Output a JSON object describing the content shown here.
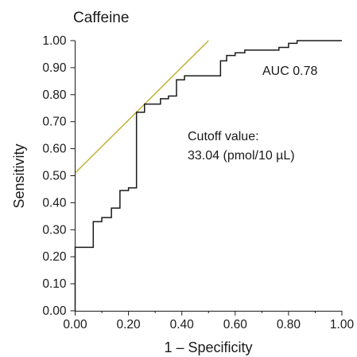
{
  "chart_data": {
    "type": "line",
    "title": "Caffeine",
    "xlabel": "1 – Specificity",
    "ylabel": "Sensitivity",
    "xlim": [
      0.0,
      1.0
    ],
    "ylim": [
      0.0,
      1.0
    ],
    "x_ticks": [
      "0.00",
      "0.20",
      "0.40",
      "0.60",
      "0.80",
      "1.00"
    ],
    "x_tick_values": [
      0.0,
      0.2,
      0.4,
      0.6,
      0.8,
      1.0
    ],
    "y_ticks": [
      "0.00",
      "0.10",
      "0.20",
      "0.30",
      "0.40",
      "0.50",
      "0.60",
      "0.70",
      "0.80",
      "0.90",
      "1.00"
    ],
    "y_tick_values": [
      0.0,
      0.1,
      0.2,
      0.3,
      0.4,
      0.5,
      0.6,
      0.7,
      0.8,
      0.9,
      1.0
    ],
    "grid": false,
    "series": [
      {
        "x": [
          0.0,
          0.0,
          0.068,
          0.068,
          0.1,
          0.1,
          0.136,
          0.136,
          0.168,
          0.168,
          0.2,
          0.2,
          0.23,
          0.23,
          0.26,
          0.26,
          0.32,
          0.32,
          0.35,
          0.35,
          0.38,
          0.38,
          0.41,
          0.41,
          0.545,
          0.545,
          0.568,
          0.568,
          0.6,
          0.6,
          0.636,
          0.636,
          0.764,
          0.764,
          0.8,
          0.8,
          0.832,
          0.832,
          0.864,
          1.0
        ],
        "y": [
          0.0,
          0.235,
          0.235,
          0.33,
          0.33,
          0.345,
          0.345,
          0.38,
          0.38,
          0.445,
          0.445,
          0.455,
          0.455,
          0.735,
          0.735,
          0.765,
          0.765,
          0.785,
          0.785,
          0.795,
          0.795,
          0.855,
          0.855,
          0.87,
          0.87,
          0.925,
          0.925,
          0.945,
          0.945,
          0.955,
          0.955,
          0.965,
          0.965,
          0.975,
          0.975,
          0.99,
          0.99,
          1.0,
          1.0,
          1.0
        ]
      },
      {
        "x": [
          0.0,
          0.5
        ],
        "y": [
          0.51,
          1.0
        ]
      }
    ],
    "annotations": {
      "auc": "AUC 0.78",
      "cutoff_line1": "Cutoff value:",
      "cutoff_line2": "33.04 (pmol/10 µL)"
    }
  },
  "colors": {
    "roc": "#1a1a1a",
    "reference": "#c2b13a"
  }
}
